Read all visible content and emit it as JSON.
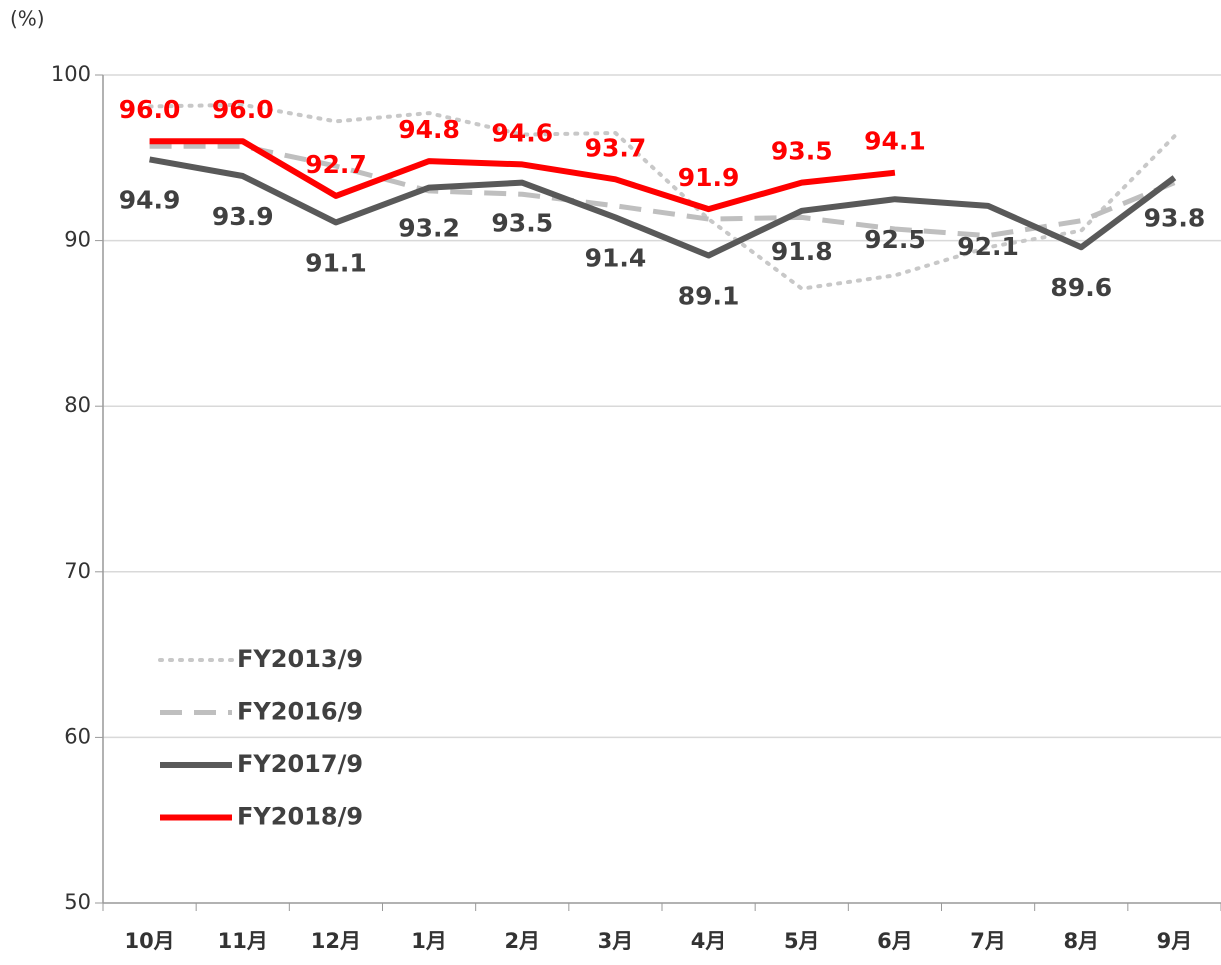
{
  "chart_data": {
    "type": "line",
    "y_axis_label": "(%)",
    "categories": [
      "10月",
      "11月",
      "12月",
      "1月",
      "2月",
      "3月",
      "4月",
      "5月",
      "6月",
      "7月",
      "8月",
      "9月"
    ],
    "ylim": [
      50,
      100
    ],
    "yticks": [
      50,
      60,
      70,
      80,
      90,
      100
    ],
    "grid": true,
    "legend": "lower left",
    "series": [
      {
        "name": "FY2013/9",
        "color": "#c8c8c8",
        "style": "dotted",
        "values": [
          98.1,
          98.2,
          97.2,
          97.7,
          96.4,
          96.5,
          91.3,
          87.1,
          87.9,
          89.6,
          90.6,
          96.3
        ]
      },
      {
        "name": "FY2016/9",
        "color": "#bfbfbf",
        "style": "dashed",
        "values": [
          95.7,
          95.7,
          94.5,
          93.0,
          92.8,
          92.1,
          91.3,
          91.4,
          90.7,
          90.3,
          91.2,
          93.5
        ]
      },
      {
        "name": "FY2017/9",
        "color": "#595959",
        "style": "solid",
        "values": [
          94.9,
          93.9,
          91.1,
          93.2,
          93.5,
          91.4,
          89.1,
          91.8,
          92.5,
          92.1,
          89.6,
          93.8
        ],
        "value_labels": [
          "94.9",
          "93.9",
          "91.1",
          "93.2",
          "93.5",
          "91.4",
          "89.1",
          "91.8",
          "92.5",
          "92.1",
          "89.6",
          "93.8"
        ]
      },
      {
        "name": "FY2018/9",
        "color": "#ff0000",
        "style": "solid",
        "values": [
          96.0,
          96.0,
          92.7,
          94.8,
          94.6,
          93.7,
          91.9,
          93.5,
          94.1,
          null,
          null,
          null
        ],
        "value_labels": [
          "96.0",
          "96.0",
          "92.7",
          "94.8",
          "94.6",
          "93.7",
          "91.9",
          "93.5",
          "94.1",
          null,
          null,
          null
        ]
      }
    ]
  }
}
